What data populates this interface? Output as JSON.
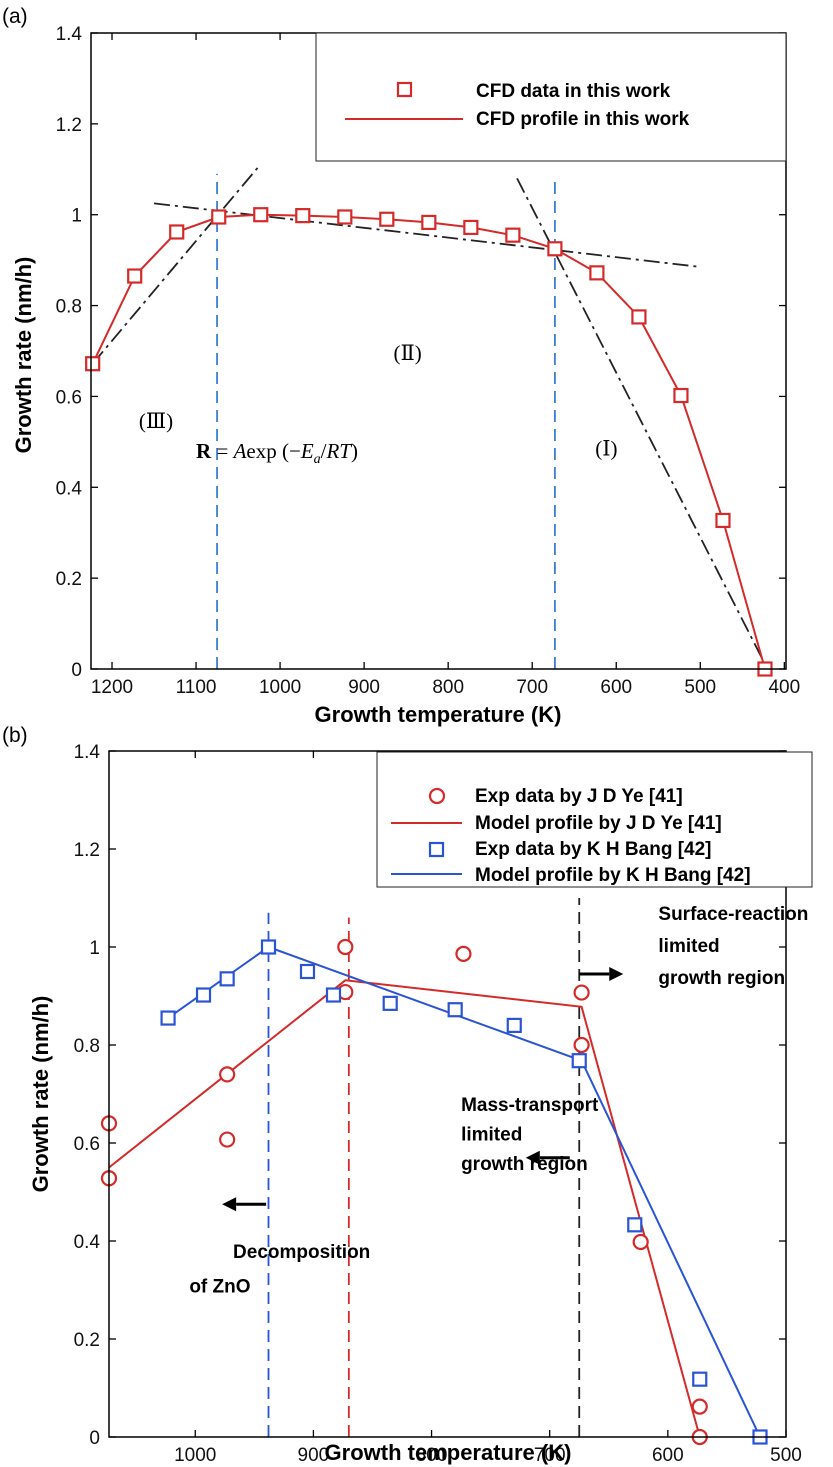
{
  "chart_data": [
    {
      "panel": "(a)",
      "type": "line",
      "xlabel": "Growth temperature (K)",
      "ylabel": "Growth rate (nm/h)",
      "xlim": [
        1225,
        398
      ],
      "ylim": [
        0,
        1.4
      ],
      "x_reversed": true,
      "xticks": [
        1200,
        1100,
        1000,
        900,
        800,
        700,
        600,
        500,
        400
      ],
      "yticks": [
        0,
        0.2,
        0.4,
        0.6,
        0.8,
        1,
        1.2,
        1.4
      ],
      "grid": false,
      "legend_position": "top-right",
      "series": [
        {
          "name": "CFD data in this work",
          "marker": "square",
          "color": "#d42a2a",
          "x": [
            1223,
            1173,
            1123,
            1073,
            1023,
            973,
            923,
            873,
            823,
            773,
            723,
            673,
            623,
            573,
            523,
            473,
            423
          ],
          "y": [
            0.672,
            0.865,
            0.962,
            0.995,
            1.0,
            0.998,
            0.995,
            0.99,
            0.983,
            0.972,
            0.955,
            0.925,
            0.872,
            0.775,
            0.602,
            0.327,
            0.0
          ]
        },
        {
          "name": "CFD profile in this work",
          "style": "solid",
          "color": "#d42a2a",
          "x": [
            1223,
            1173,
            1123,
            1073,
            1023,
            973,
            923,
            873,
            823,
            773,
            723,
            673,
            623,
            573,
            523,
            473,
            423
          ],
          "y": [
            0.672,
            0.865,
            0.962,
            0.995,
            1.0,
            0.998,
            0.995,
            0.99,
            0.983,
            0.972,
            0.955,
            0.925,
            0.872,
            0.775,
            0.602,
            0.327,
            0.0
          ]
        }
      ],
      "guide_lines": [
        {
          "style": "dash-dot",
          "color": "#222222",
          "x": [
            1223,
            1025
          ],
          "y": [
            0.672,
            1.107
          ]
        },
        {
          "style": "dash-dot",
          "color": "#222222",
          "x": [
            1150,
            500
          ],
          "y": [
            1.025,
            0.885
          ]
        },
        {
          "style": "dash-dot",
          "color": "#222222",
          "x": [
            718,
            420
          ],
          "y": [
            1.08,
            0.0
          ]
        },
        {
          "style": "dashed",
          "color": "#3b7fd1",
          "x": [
            1075,
            1075
          ],
          "y": [
            0,
            1.09
          ]
        },
        {
          "style": "dashed",
          "color": "#3b7fd1",
          "x": [
            673,
            673
          ],
          "y": [
            0,
            1.08
          ]
        }
      ],
      "annotations": [
        {
          "text": "(Ⅱ)",
          "x": 865,
          "y": 0.68
        },
        {
          "text": "(Ⅲ)",
          "x": 1168,
          "y": 0.53
        },
        {
          "text": "(Ⅰ)",
          "x": 625,
          "y": 0.47
        }
      ],
      "equation": {
        "x": 1100,
        "y": 0.465,
        "R": "R",
        "eq": " = ",
        "A": "A",
        "exp": "exp",
        "lp": " (−",
        "E": "E",
        "sub": "a",
        "slash": "/",
        "RT": "RT",
        "rp": ")"
      }
    },
    {
      "panel": "(b)",
      "type": "line",
      "xlabel": "Growth temperature (K)",
      "ylabel": "Growth rate (nm/h)",
      "xlim": [
        1073,
        500
      ],
      "ylim": [
        0,
        1.4
      ],
      "x_reversed": true,
      "xticks": [
        1000,
        900,
        800,
        700,
        600,
        500
      ],
      "yticks": [
        0,
        0.2,
        0.4,
        0.6,
        0.8,
        1,
        1.2,
        1.4
      ],
      "grid": false,
      "legend_position": "top-right",
      "series": [
        {
          "name": "Exp data by J D Ye [41]",
          "marker": "circle",
          "color": "#d42a2a",
          "x": [
            1073,
            1073,
            973,
            973,
            873,
            873,
            773,
            673,
            673,
            623,
            573,
            573
          ],
          "y": [
            0.64,
            0.528,
            0.74,
            0.607,
            1.0,
            0.908,
            0.986,
            0.907,
            0.8,
            0.398,
            0.062,
            0.0
          ]
        },
        {
          "name": "Model profile by J D Ye [41]",
          "style": "solid",
          "color": "#d42a2a",
          "x": [
            1073,
            873,
            673,
            573
          ],
          "y": [
            0.55,
            0.932,
            0.878,
            0.0
          ]
        },
        {
          "name": "Exp data by K H Bang [42]",
          "marker": "square",
          "color": "#2a54d4",
          "x": [
            1023,
            993,
            973,
            938,
            905,
            883,
            835,
            780,
            730,
            675,
            628,
            573,
            522
          ],
          "y": [
            0.855,
            0.902,
            0.935,
            1.0,
            0.95,
            0.902,
            0.885,
            0.872,
            0.84,
            0.768,
            0.433,
            0.118,
            0.0
          ]
        },
        {
          "name": "Model profile by K H Bang [42]",
          "style": "solid",
          "color": "#2a54d4",
          "x": [
            1023,
            938,
            673,
            522
          ],
          "y": [
            0.855,
            1.0,
            0.768,
            0.0
          ]
        }
      ],
      "guide_lines": [
        {
          "style": "dashed",
          "color": "#2a54d4",
          "x": [
            938,
            938
          ],
          "y": [
            0,
            1.07
          ]
        },
        {
          "style": "dashed",
          "color": "#d42a2a",
          "x": [
            870,
            870
          ],
          "y": [
            0,
            1.06
          ]
        },
        {
          "style": "dashed",
          "color": "#222222",
          "x": [
            675,
            675
          ],
          "y": [
            0,
            1.1
          ]
        }
      ],
      "arrows": [
        {
          "direction": "right",
          "x": 675,
          "y": 0.945
        },
        {
          "direction": "left",
          "x": 683,
          "y": 0.57
        },
        {
          "direction": "left",
          "x": 940,
          "y": 0.475
        }
      ],
      "annotations": [
        {
          "text": "Surface-reaction",
          "x": 608,
          "y": 1.055
        },
        {
          "text": "limited",
          "x": 608,
          "y": 0.99
        },
        {
          "text": "growth region",
          "x": 608,
          "y": 0.925
        },
        {
          "text": "Mass-transport",
          "x": 775,
          "y": 0.665
        },
        {
          "text": "limited",
          "x": 775,
          "y": 0.605
        },
        {
          "text": "growth region",
          "x": 775,
          "y": 0.545
        },
        {
          "text": "Decomposition",
          "x": 968,
          "y": 0.365
        },
        {
          "text": "of ZnO",
          "x": 1005,
          "y": 0.295
        }
      ]
    }
  ]
}
